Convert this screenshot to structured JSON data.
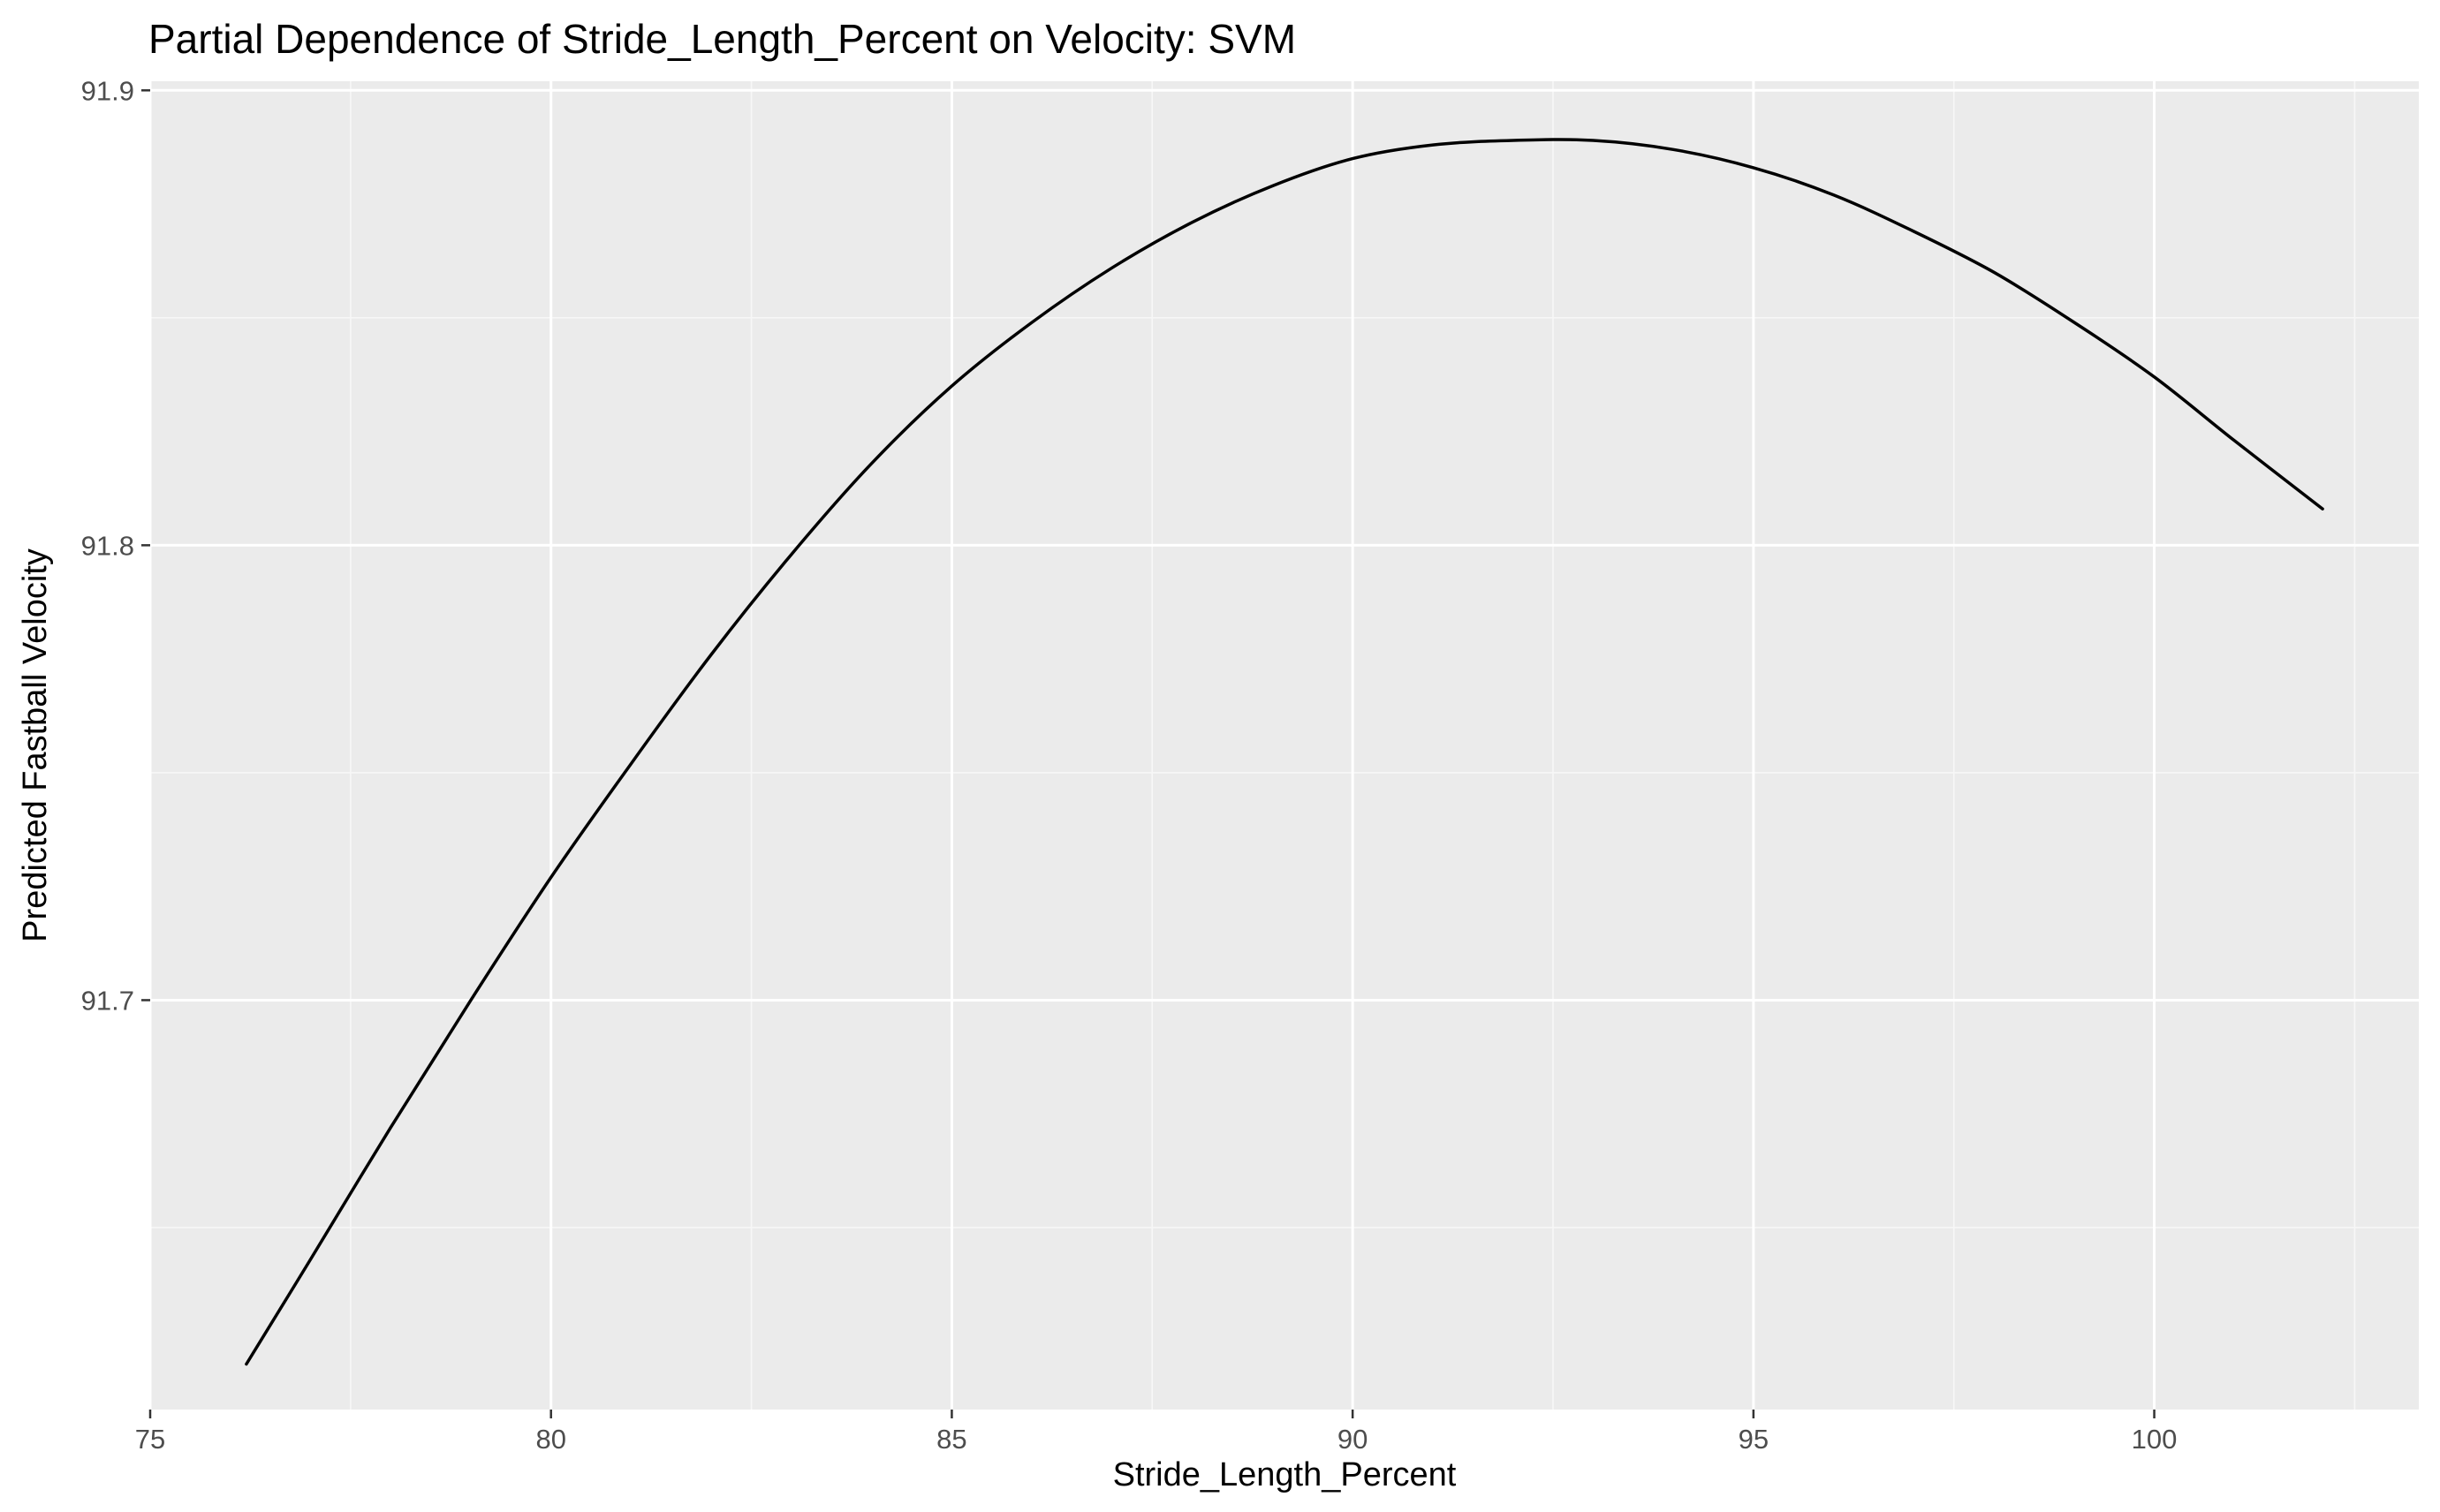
{
  "chart_data": {
    "type": "line",
    "title": "Partial Dependence of Stride_Length_Percent on Velocity: SVM",
    "xlabel": "Stride_Length_Percent",
    "ylabel": "Predicted Fastball Velocity",
    "xlim": [
      75,
      103.3
    ],
    "ylim": [
      91.61,
      91.902
    ],
    "x_ticks": [
      75,
      80,
      85,
      90,
      95,
      100
    ],
    "x_tick_labels": [
      "75",
      "80",
      "85",
      "90",
      "95",
      "100"
    ],
    "y_ticks": [
      91.7,
      91.8,
      91.9
    ],
    "y_tick_labels": [
      "91.7",
      "91.8",
      "91.9"
    ],
    "grid": true,
    "legend": "none",
    "colors": {
      "panel_background": "#ebebeb",
      "grid_major": "#ffffff",
      "grid_minor": "#f7f7f7",
      "line": "#000000",
      "tick_label": "#4d4d4d",
      "axis_tick": "#333333"
    },
    "series": [
      {
        "x": [
          76.2,
          77.0,
          78.0,
          79.0,
          80.0,
          81.0,
          82.0,
          83.0,
          84.0,
          85.0,
          86.0,
          87.0,
          88.0,
          89.0,
          90.0,
          91.0,
          92.0,
          93.0,
          94.0,
          95.0,
          96.0,
          97.0,
          98.0,
          99.0,
          100.0,
          101.0,
          102.1
        ],
        "values": [
          91.62,
          91.643,
          91.672,
          91.7,
          91.727,
          91.752,
          91.776,
          91.798,
          91.818,
          91.835,
          91.849,
          91.861,
          91.871,
          91.879,
          91.885,
          91.888,
          91.889,
          91.889,
          91.887,
          91.883,
          91.877,
          91.869,
          91.86,
          91.849,
          91.837,
          91.823,
          91.808
        ]
      }
    ]
  }
}
